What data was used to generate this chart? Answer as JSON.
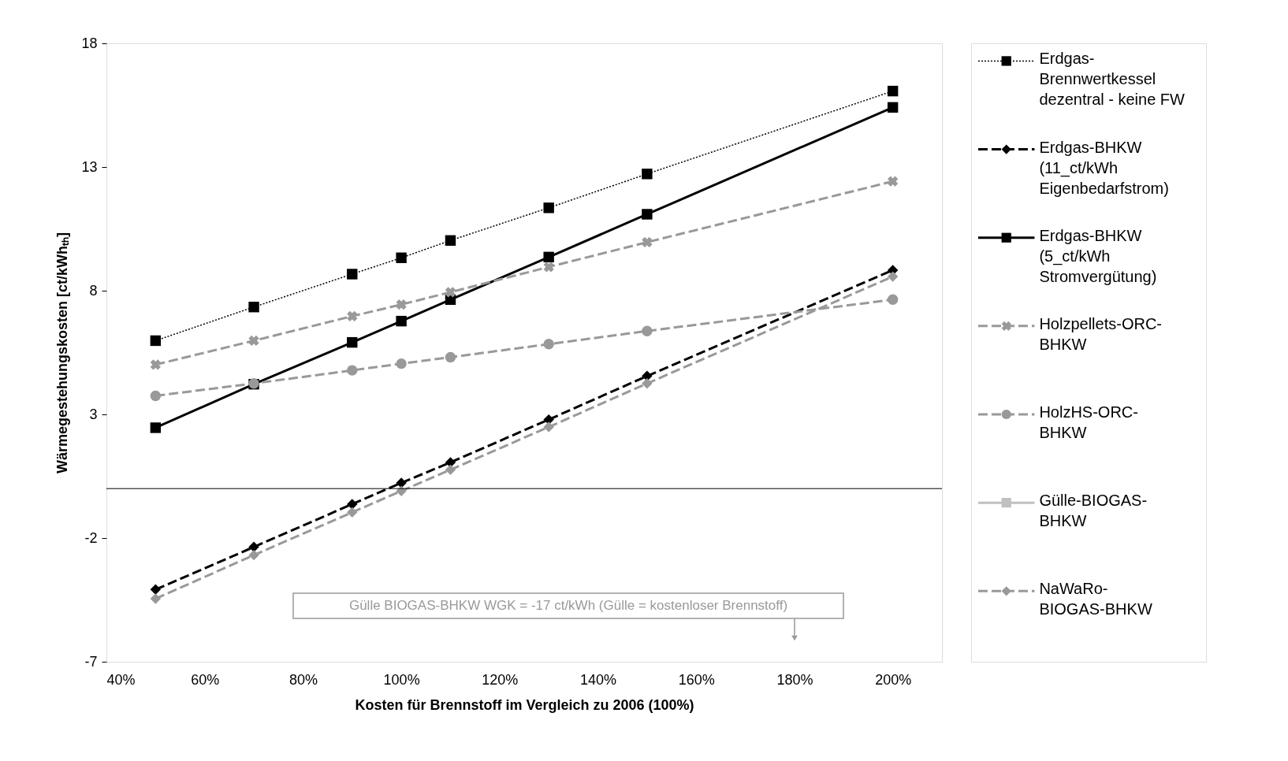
{
  "chart_data": {
    "type": "line",
    "xlabel": "Kosten für Brennstoff im Vergleich zu 2006 (100%)",
    "ylabel": "Wärmegestehungskosten [ct/kWhₜₕ]",
    "x": [
      50,
      70,
      90,
      100,
      110,
      130,
      150,
      200
    ],
    "xlim": [
      40,
      210
    ],
    "xticks": [
      {
        "value": 40,
        "label": "40%"
      },
      {
        "value": 60,
        "label": "60%"
      },
      {
        "value": 80,
        "label": "80%"
      },
      {
        "value": 100,
        "label": "100%"
      },
      {
        "value": 120,
        "label": "120%"
      },
      {
        "value": 140,
        "label": "140%"
      },
      {
        "value": 160,
        "label": "160%"
      },
      {
        "value": 180,
        "label": "180%"
      },
      {
        "value": 200,
        "label": "200%"
      }
    ],
    "ylim": [
      -7,
      18
    ],
    "yticks": [
      -7,
      -2,
      3,
      8,
      13,
      18
    ],
    "grid": false,
    "legend": "right",
    "series": [
      {
        "name": "Erdgas-\nBrennwertkessel\ndezentral - keine FW",
        "color": "#000000",
        "marker": "square",
        "line_style": "dotted",
        "values": [
          5.98,
          7.34,
          8.67,
          9.33,
          10.03,
          11.35,
          12.72,
          16.07
        ]
      },
      {
        "name": "Erdgas-BHKW\n(11_ct/kWh\nEigenbedarfstrom)",
        "color": "#000000",
        "marker": "diamond",
        "line_style": "dashed",
        "values": [
          -4.08,
          -2.36,
          -0.63,
          0.23,
          1.06,
          2.79,
          4.55,
          8.83
        ]
      },
      {
        "name": "Erdgas-BHKW\n(5_ct/kWh\nStromvergütung)",
        "color": "#000000",
        "marker": "square",
        "line_style": "solid",
        "values": [
          2.46,
          4.22,
          5.91,
          6.77,
          7.64,
          9.36,
          11.09,
          15.41
        ]
      },
      {
        "name": "Holzpellets-ORC-\nBHKW",
        "color": "#999999",
        "marker": "cross",
        "line_style": "dashed",
        "values": [
          5.01,
          5.98,
          6.97,
          7.44,
          7.94,
          8.96,
          9.96,
          12.42
        ]
      },
      {
        "name": "HolzHS-ORC-\nBHKW",
        "color": "#999999",
        "marker": "circle",
        "line_style": "dashed",
        "values": [
          3.75,
          4.25,
          4.78,
          5.05,
          5.31,
          5.84,
          6.37,
          7.64
        ]
      },
      {
        "name": "Gülle-BIOGAS-\nBHKW",
        "color": "#c0c0c0",
        "marker": "square",
        "line_style": "solid",
        "values": [
          null,
          null,
          null,
          null,
          null,
          null,
          null,
          null
        ]
      },
      {
        "name": "NaWaRo-\nBIOGAS-BHKW",
        "color": "#999999",
        "marker": "diamond",
        "line_style": "dashed",
        "values": [
          -4.45,
          -2.69,
          -0.96,
          -0.1,
          0.76,
          2.49,
          4.25,
          8.57
        ]
      }
    ],
    "ref_lines": [
      {
        "axis": "y",
        "value": 0,
        "label": null,
        "color": "#000000"
      }
    ],
    "annotations": [
      "Gülle BIOGAS-BHKW WGK = -17 ct/kWh (Gülle = kostenloser Brennstoff)"
    ]
  }
}
